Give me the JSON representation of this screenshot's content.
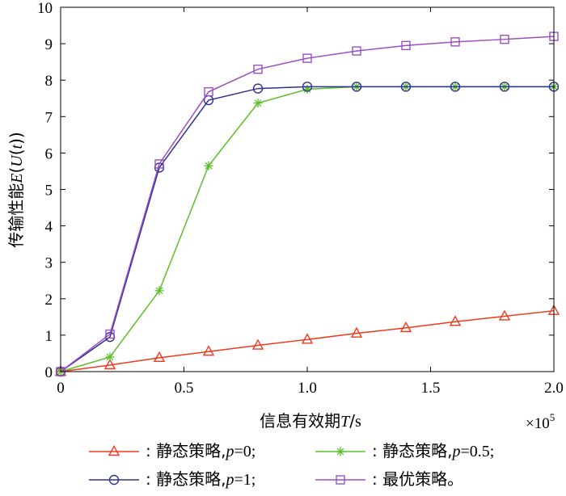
{
  "chart_data": {
    "type": "line",
    "title": "",
    "xlabel": "信息有效期T/s",
    "ylabel": "传输性能E(U(t))",
    "x_multiplier": "×10",
    "x_multiplier_exp": "5",
    "xlim": [
      0,
      2.0
    ],
    "ylim": [
      0,
      10
    ],
    "xticks": [
      0,
      0.5,
      1.0,
      1.5,
      2.0
    ],
    "xtick_labels": [
      "0",
      "0.5",
      "1.0",
      "1.5",
      "2.0"
    ],
    "yticks": [
      0,
      1,
      2,
      3,
      4,
      5,
      6,
      7,
      8,
      9,
      10
    ],
    "ytick_labels": [
      "0",
      "1",
      "2",
      "3",
      "4",
      "5",
      "6",
      "7",
      "8",
      "9",
      "10"
    ],
    "grid": false,
    "legend_position": "bottom-outside",
    "x": [
      0,
      0.2,
      0.4,
      0.6,
      0.8,
      1.0,
      1.2,
      1.4,
      1.6,
      1.8,
      2.0
    ],
    "series": [
      {
        "legend_label": "静态策略,",
        "legend_var": "p",
        "legend_val": "=0;",
        "color": "#ee3a1c",
        "marker": "triangle",
        "values": [
          0,
          0.18,
          0.38,
          0.55,
          0.72,
          0.88,
          1.05,
          1.2,
          1.37,
          1.52,
          1.67
        ]
      },
      {
        "legend_label": "静态策略,",
        "legend_var": "p",
        "legend_val": "=0.5;",
        "color": "#5cbf2a",
        "marker": "asterisk",
        "values": [
          0,
          0.4,
          2.22,
          5.65,
          7.37,
          7.75,
          7.82,
          7.82,
          7.82,
          7.82,
          7.82
        ]
      },
      {
        "legend_label": "静态策略,",
        "legend_var": "p",
        "legend_val": "=1;",
        "color": "#2e3192",
        "marker": "circle",
        "values": [
          0,
          0.95,
          5.6,
          7.45,
          7.77,
          7.82,
          7.82,
          7.82,
          7.82,
          7.82,
          7.82
        ]
      },
      {
        "legend_label": "最优策略。",
        "legend_var": "",
        "legend_val": "",
        "color": "#9b4fc0",
        "marker": "square",
        "values": [
          0,
          1.03,
          5.7,
          7.68,
          8.3,
          8.6,
          8.8,
          8.95,
          9.05,
          9.12,
          9.2
        ]
      }
    ]
  }
}
